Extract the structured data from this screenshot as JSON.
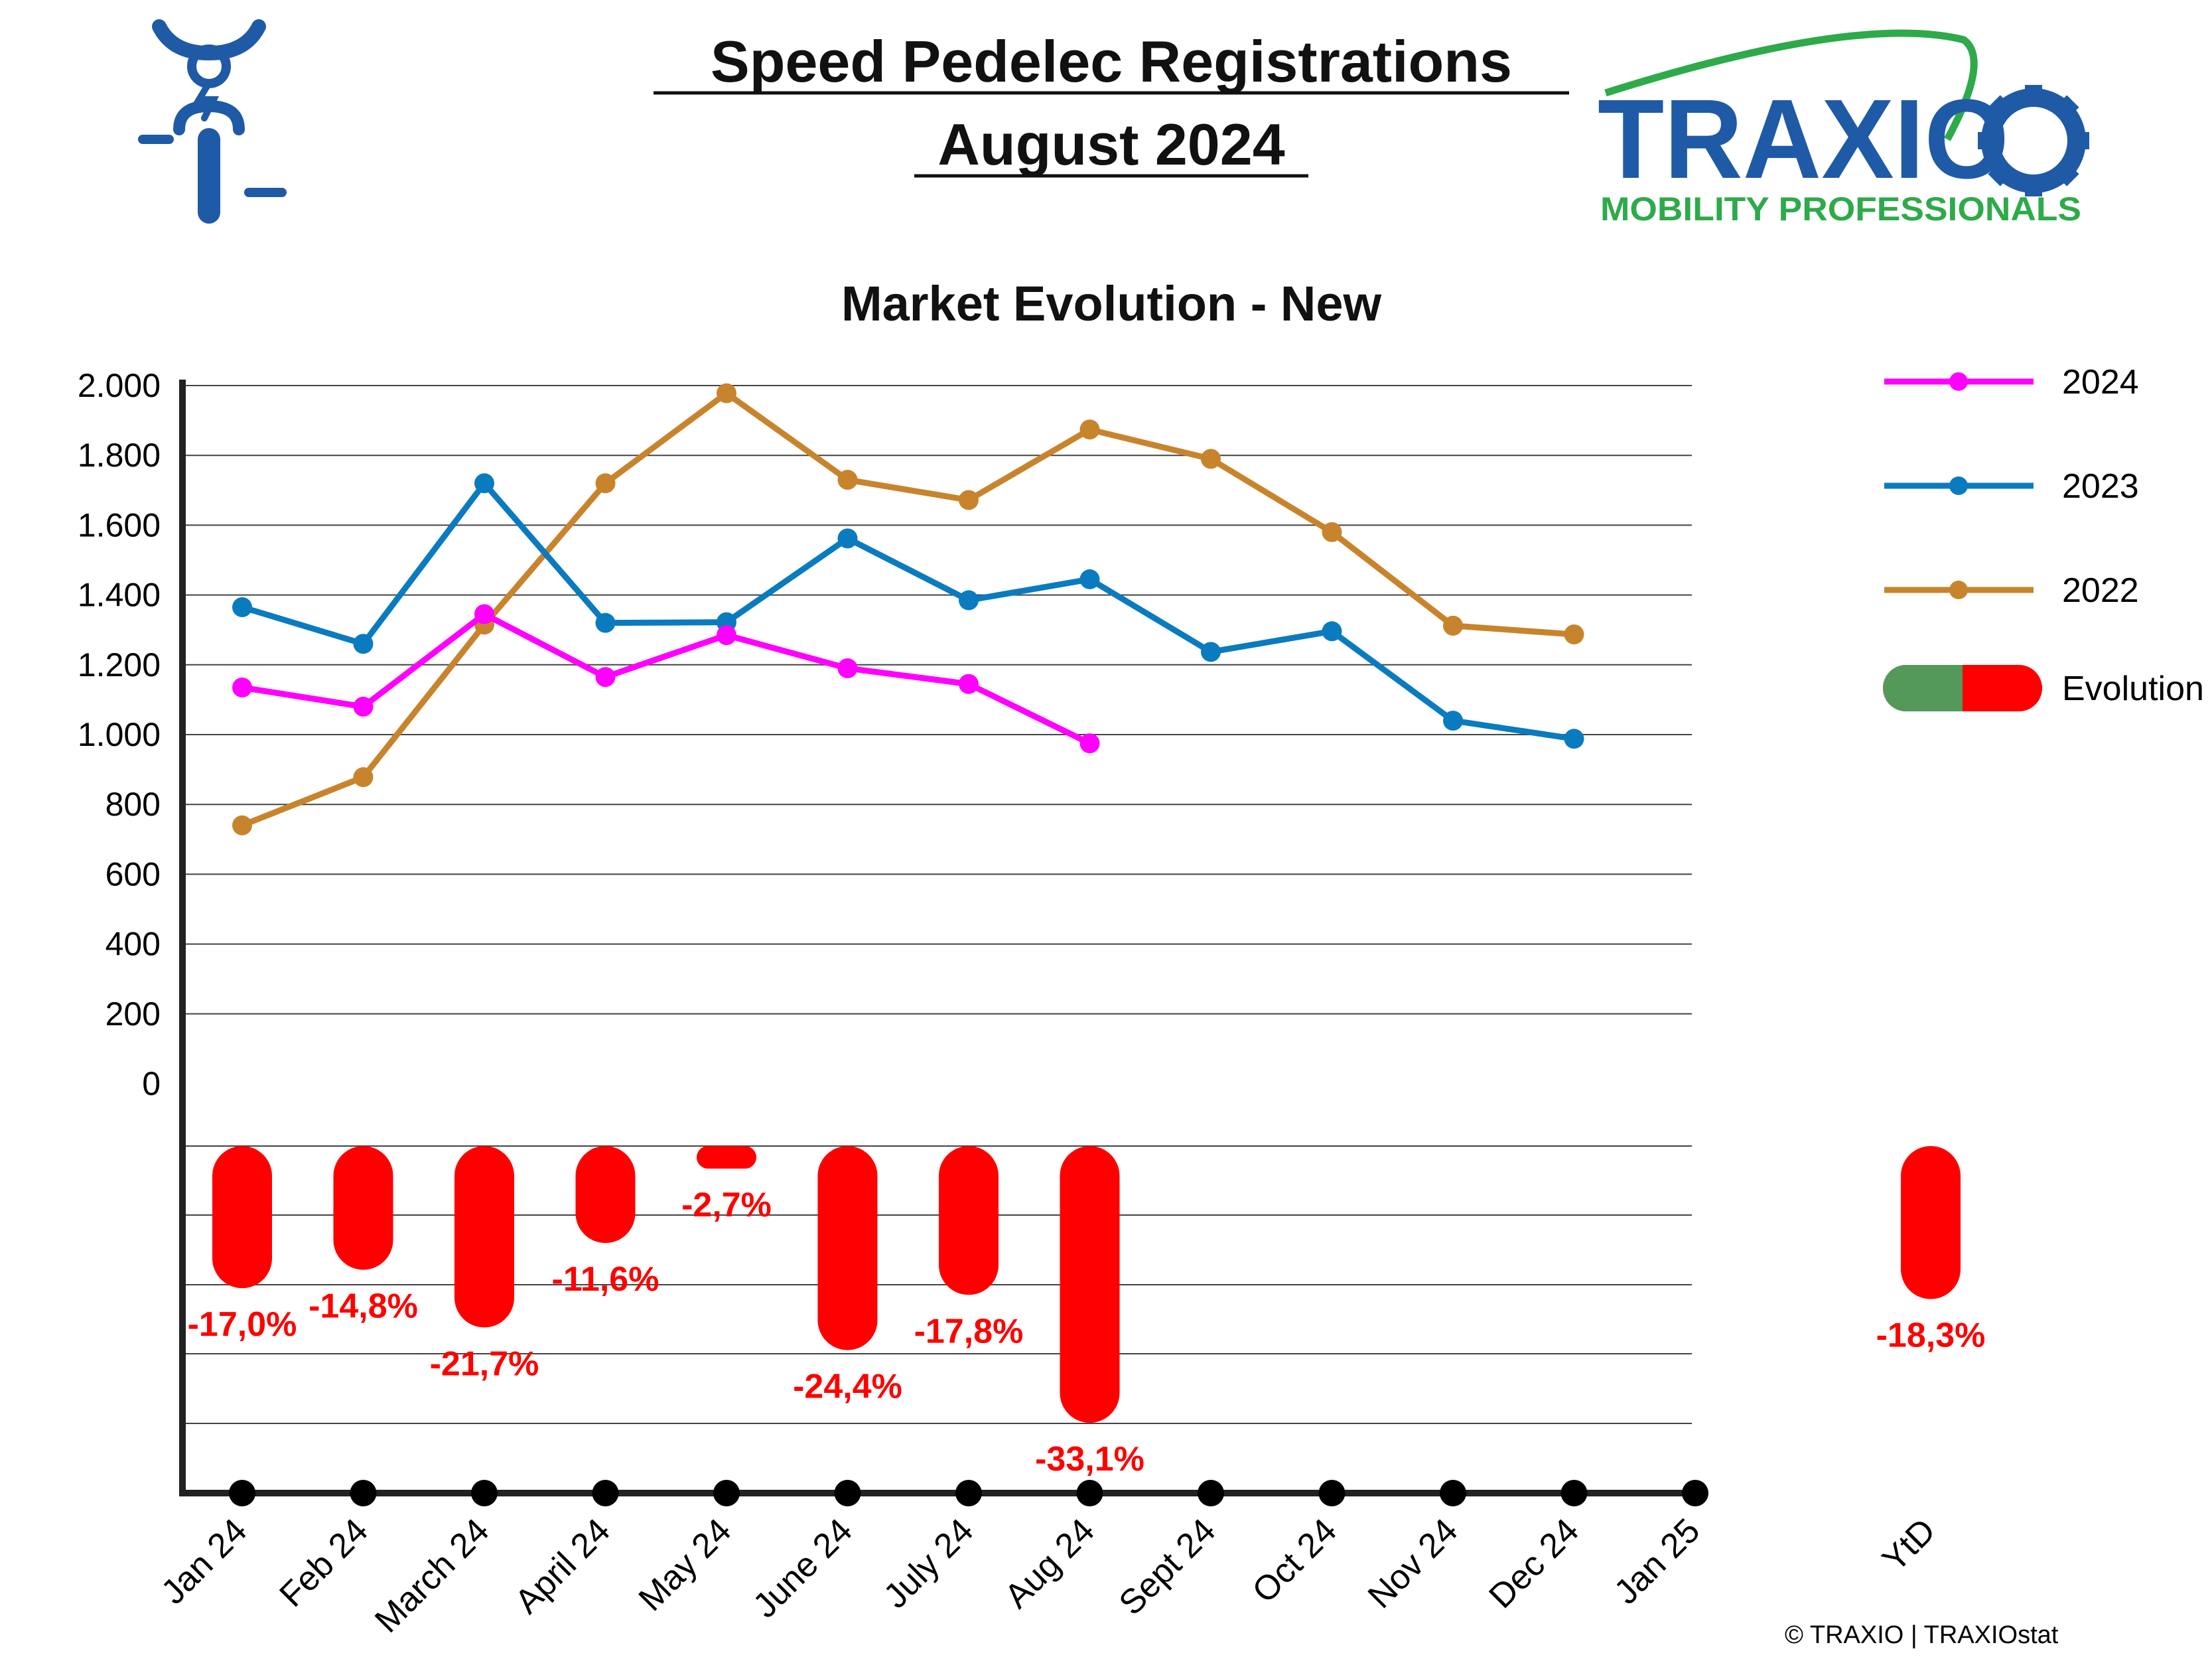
{
  "header": {
    "title_line1": "Speed Pedelec Registrations",
    "title_line2": "August 2024",
    "subtitle": "Market Evolution - New"
  },
  "logo": {
    "name": "TRAXIO",
    "tagline": "MOBILITY PROFESSIONALS",
    "colors": {
      "blue": "#1f5aa6",
      "green": "#2eaa4a"
    }
  },
  "icon": {
    "semantic": "speed-pedelec-icon",
    "color": "#1f5aa6"
  },
  "credit": "© TRAXIO | TRAXIOstat",
  "legend": {
    "items": [
      {
        "label": "2024",
        "color": "#ff00ff",
        "kind": "line"
      },
      {
        "label": "2023",
        "color": "#0a7bbf",
        "kind": "line"
      },
      {
        "label": "2022",
        "color": "#c8842c",
        "kind": "line"
      },
      {
        "label": "Evolution",
        "colors": [
          "#54995a",
          "#ff0000"
        ],
        "kind": "pill"
      }
    ]
  },
  "chart_data": {
    "type": "line",
    "categories": [
      "Jan 24",
      "Feb 24",
      "March 24",
      "April 24",
      "May 24",
      "June 24",
      "July 24",
      "Aug 24",
      "Sept 24",
      "Oct 24",
      "Nov 24",
      "Dec 24",
      "Jan 25"
    ],
    "ylim": [
      0,
      2000
    ],
    "yticks": [
      0,
      200,
      400,
      600,
      800,
      1000,
      1200,
      1400,
      1600,
      1800,
      2000
    ],
    "ytick_labels": [
      "0",
      "200",
      "400",
      "600",
      "800",
      "1.000",
      "1.200",
      "1.400",
      "1.600",
      "1.800",
      "2.000"
    ],
    "grid": true,
    "legend_position": "right",
    "series": [
      {
        "name": "2024",
        "color": "#ff00ff",
        "values": [
          1135,
          1080,
          1345,
          1165,
          1285,
          1190,
          1145,
          975,
          null,
          null,
          null,
          null,
          null
        ]
      },
      {
        "name": "2023",
        "color": "#0a7bbf",
        "values": [
          1365,
          1260,
          1720,
          1320,
          1322,
          1562,
          1385,
          1445,
          1237,
          1296,
          1040,
          988,
          null
        ]
      },
      {
        "name": "2022",
        "color": "#c8842c",
        "values": [
          740,
          878,
          1315,
          1720,
          1978,
          1730,
          1672,
          1874,
          1790,
          1580,
          1312,
          1287,
          null
        ]
      }
    ],
    "evolution": {
      "name": "Evolution",
      "values": [
        -17.0,
        -14.8,
        -21.7,
        -11.6,
        -2.7,
        -24.4,
        -17.8,
        -33.1
      ],
      "labels": [
        "-17,0%",
        "-14,8%",
        "-21,7%",
        "-11,6%",
        "-2,7%",
        "-24,4%",
        "-17,8%",
        "-33,1%"
      ],
      "ytd": {
        "category": "YtD",
        "value": -18.3,
        "label": "-18,3%"
      },
      "negative_color": "#ff0000",
      "positive_color": "#54995a"
    }
  }
}
